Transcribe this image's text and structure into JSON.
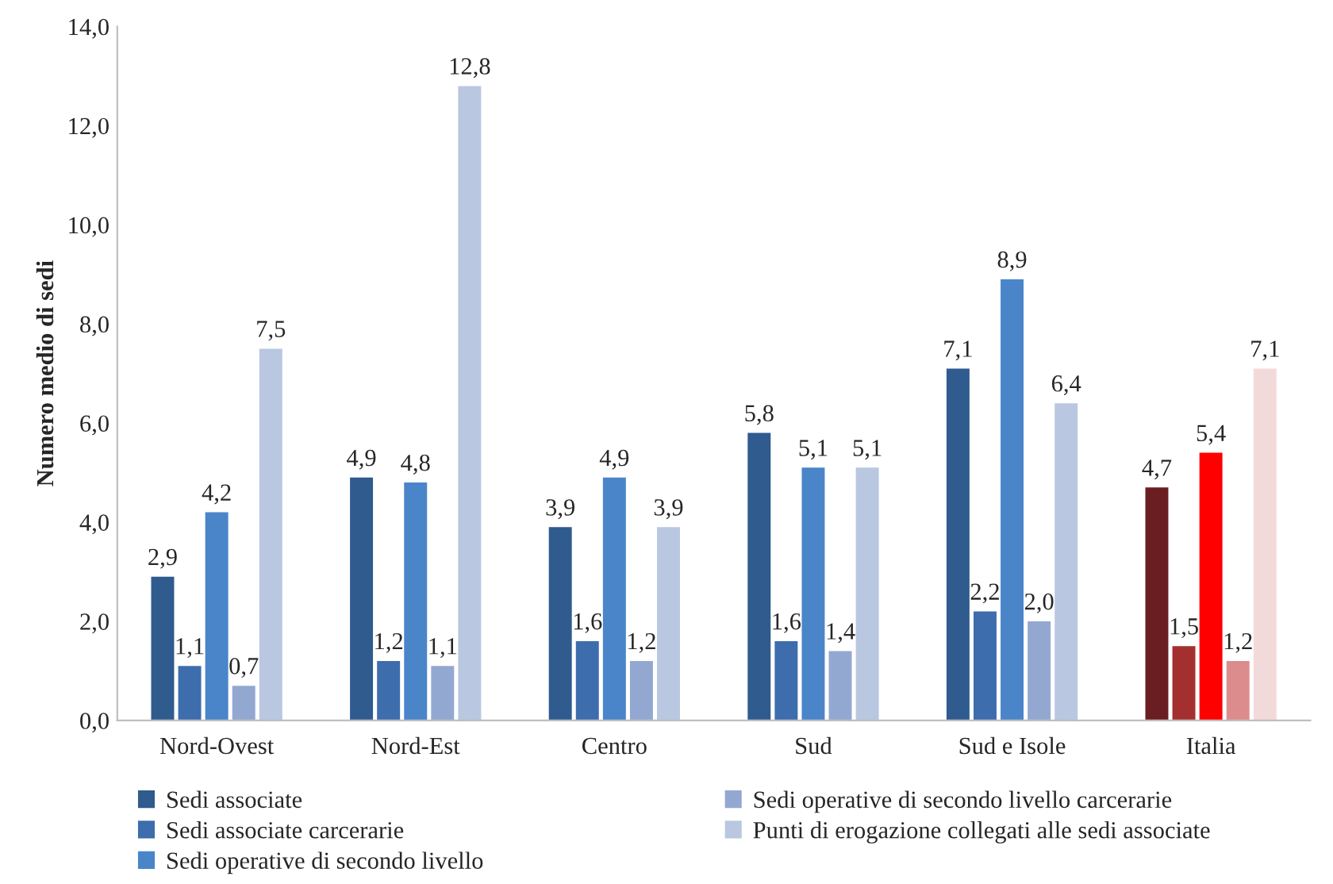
{
  "chart_data": {
    "type": "bar",
    "ylabel": "Numero medio di sedi",
    "categories": [
      "Nord-Ovest",
      "Nord-Est",
      "Centro",
      "Sud",
      "Sud e Isole",
      "Italia"
    ],
    "series": [
      {
        "name": "Sedi associate",
        "color": "#2f5b8e",
        "colors": [
          "#2f5b8e",
          "#2f5b8e",
          "#2f5b8e",
          "#2f5b8e",
          "#2f5b8e",
          "#6b1e22"
        ],
        "values": [
          2.9,
          4.9,
          3.9,
          5.8,
          7.1,
          4.7
        ],
        "value_labels": [
          "2,9",
          "4,9",
          "3,9",
          "5,8",
          "7,1",
          "4,7"
        ]
      },
      {
        "name": "Sedi associate carcerarie",
        "color": "#3d6dad",
        "colors": [
          "#3d6dad",
          "#3d6dad",
          "#3d6dad",
          "#3d6dad",
          "#3d6dad",
          "#a3302f"
        ],
        "values": [
          1.1,
          1.2,
          1.6,
          1.6,
          2.2,
          1.5
        ],
        "value_labels": [
          "1,1",
          "1,2",
          "1,6",
          "1,6",
          "2,2",
          "1,5"
        ]
      },
      {
        "name": "Sedi operative di secondo livello",
        "color": "#4a85c9",
        "colors": [
          "#4a85c9",
          "#4a85c9",
          "#4a85c9",
          "#4a85c9",
          "#4a85c9",
          "#fe0000"
        ],
        "values": [
          4.2,
          4.8,
          4.9,
          5.1,
          8.9,
          5.4
        ],
        "value_labels": [
          "4,2",
          "4,8",
          "4,9",
          "5,1",
          "8,9",
          "5,4"
        ]
      },
      {
        "name": "Sedi operative di secondo livello carcerarie",
        "color": "#93a8d1",
        "colors": [
          "#93a8d1",
          "#93a8d1",
          "#93a8d1",
          "#93a8d1",
          "#93a8d1",
          "#dc8c8c"
        ],
        "values": [
          0.7,
          1.1,
          1.2,
          1.4,
          2.0,
          1.2
        ],
        "value_labels": [
          "0,7",
          "1,1",
          "1,2",
          "1,4",
          "2,0",
          "1,2"
        ]
      },
      {
        "name": "Punti di erogazione collegati alle sedi associate",
        "color": "#b9c7e1",
        "colors": [
          "#b9c7e1",
          "#b9c7e1",
          "#b9c7e1",
          "#b9c7e1",
          "#b9c7e1",
          "#f3dada"
        ],
        "values": [
          7.5,
          12.8,
          3.9,
          5.1,
          6.4,
          7.1
        ],
        "value_labels": [
          "7,5",
          "12,8",
          "3,9",
          "5,1",
          "6,4",
          "7,1"
        ]
      }
    ],
    "ylim": [
      0,
      14
    ],
    "yticks": [
      {
        "value": 0,
        "label": "0,0"
      },
      {
        "value": 2,
        "label": "2,0"
      },
      {
        "value": 4,
        "label": "4,0"
      },
      {
        "value": 6,
        "label": "6,0"
      },
      {
        "value": 8,
        "label": "8,0"
      },
      {
        "value": 10,
        "label": "10,0"
      },
      {
        "value": 12,
        "label": "12,0"
      },
      {
        "value": 14,
        "label": "14,0"
      }
    ],
    "grid": false,
    "legend": "bottom"
  }
}
